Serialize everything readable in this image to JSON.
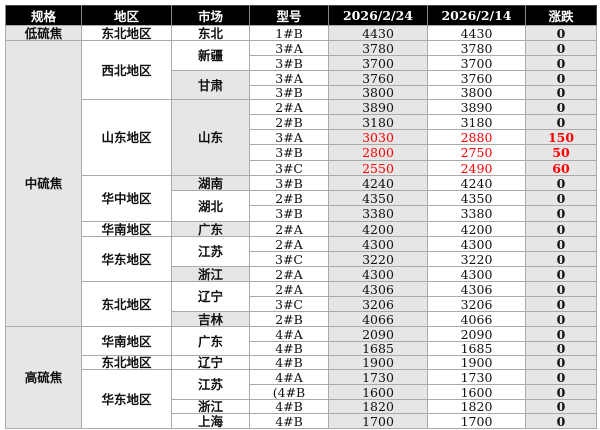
{
  "header": [
    "规格",
    "地区",
    "市场",
    "型号",
    "2026/2/24",
    "2026/2/14",
    "涨跌"
  ],
  "colors": {
    "up": "#ff0000",
    "header_bg": "#000000",
    "shade": "#e6e6e6"
  },
  "specs": [
    {
      "name": "低硫焦",
      "regions": [
        {
          "name": "东北地区",
          "markets": [
            {
              "name": "东北",
              "shaded": false,
              "rows": [
                {
                  "model": "1#B",
                  "new": "4430",
                  "old": "4430",
                  "change": "0"
                }
              ]
            }
          ]
        }
      ]
    },
    {
      "name": "中硫焦",
      "regions": [
        {
          "name": "西北地区",
          "markets": [
            {
              "name": "新疆",
              "shaded": false,
              "rows": [
                {
                  "model": "3#A",
                  "new": "3780",
                  "old": "3780",
                  "change": "0"
                },
                {
                  "model": "3#B",
                  "new": "3700",
                  "old": "3700",
                  "change": "0"
                }
              ]
            },
            {
              "name": "甘肃",
              "shaded": true,
              "rows": [
                {
                  "model": "3#A",
                  "new": "3760",
                  "old": "3760",
                  "change": "0"
                },
                {
                  "model": "3#B",
                  "new": "3800",
                  "old": "3800",
                  "change": "0"
                }
              ]
            }
          ]
        },
        {
          "name": "山东地区",
          "markets": [
            {
              "name": "山东",
              "shaded": true,
              "rows": [
                {
                  "model": "2#A",
                  "new": "3890",
                  "old": "3890",
                  "change": "0"
                },
                {
                  "model": "2#B",
                  "new": "3180",
                  "old": "3180",
                  "change": "0"
                },
                {
                  "model": "3#A",
                  "new": "3030",
                  "old": "2880",
                  "change": "150"
                },
                {
                  "model": "3#B",
                  "new": "2800",
                  "old": "2750",
                  "change": "50"
                },
                {
                  "model": "3#C",
                  "new": "2550",
                  "old": "2490",
                  "change": "60"
                }
              ]
            }
          ]
        },
        {
          "name": "华中地区",
          "markets": [
            {
              "name": "湖南",
              "shaded": true,
              "rows": [
                {
                  "model": "3#B",
                  "new": "4240",
                  "old": "4240",
                  "change": "0"
                }
              ]
            },
            {
              "name": "湖北",
              "shaded": false,
              "rows": [
                {
                  "model": "2#B",
                  "new": "4350",
                  "old": "4350",
                  "change": "0"
                },
                {
                  "model": "3#B",
                  "new": "3380",
                  "old": "3380",
                  "change": "0"
                }
              ]
            }
          ]
        },
        {
          "name": "华南地区",
          "markets": [
            {
              "name": "广东",
              "shaded": true,
              "rows": [
                {
                  "model": "2#A",
                  "new": "4200",
                  "old": "4200",
                  "change": "0"
                }
              ]
            }
          ]
        },
        {
          "name": "华东地区",
          "markets": [
            {
              "name": "江苏",
              "shaded": false,
              "rows": [
                {
                  "model": "2#A",
                  "new": "4300",
                  "old": "4300",
                  "change": "0"
                },
                {
                  "model": "3#C",
                  "new": "3220",
                  "old": "3220",
                  "change": "0"
                }
              ]
            },
            {
              "name": "浙江",
              "shaded": true,
              "rows": [
                {
                  "model": "2#A",
                  "new": "4300",
                  "old": "4300",
                  "change": "0"
                }
              ]
            }
          ]
        },
        {
          "name": "东北地区",
          "markets": [
            {
              "name": "辽宁",
              "shaded": false,
              "rows": [
                {
                  "model": "2#A",
                  "new": "4306",
                  "old": "4306",
                  "change": "0"
                },
                {
                  "model": "3#C",
                  "new": "3206",
                  "old": "3206",
                  "change": "0"
                }
              ]
            },
            {
              "name": "吉林",
              "shaded": true,
              "rows": [
                {
                  "model": "2#B",
                  "new": "4066",
                  "old": "4066",
                  "change": "0"
                }
              ]
            }
          ]
        }
      ]
    },
    {
      "name": "高硫焦",
      "regions": [
        {
          "name": "华南地区",
          "markets": [
            {
              "name": "广东",
              "shaded": false,
              "rows": [
                {
                  "model": "4#A",
                  "new": "2090",
                  "old": "2090",
                  "change": "0"
                },
                {
                  "model": "4#B",
                  "new": "1685",
                  "old": "1685",
                  "change": "0"
                }
              ]
            }
          ]
        },
        {
          "name": "东北地区",
          "markets": [
            {
              "name": "辽宁",
              "shaded": false,
              "rows": [
                {
                  "model": "4#B",
                  "new": "1900",
                  "old": "1900",
                  "change": "0"
                }
              ]
            }
          ]
        },
        {
          "name": "华东地区",
          "markets": [
            {
              "name": "江苏",
              "shaded": false,
              "rows": [
                {
                  "model": "4#A",
                  "new": "1730",
                  "old": "1730",
                  "change": "0"
                },
                {
                  "model": "(4#B",
                  "new": "1600",
                  "old": "1600",
                  "change": "0"
                }
              ]
            },
            {
              "name": "浙江",
              "shaded": false,
              "rows": [
                {
                  "model": "4#B",
                  "new": "1820",
                  "old": "1820",
                  "change": "0"
                }
              ]
            },
            {
              "name": "上海",
              "shaded": false,
              "rows": [
                {
                  "model": "4#B",
                  "new": "1700",
                  "old": "1700",
                  "change": "0"
                }
              ]
            }
          ]
        }
      ]
    }
  ]
}
